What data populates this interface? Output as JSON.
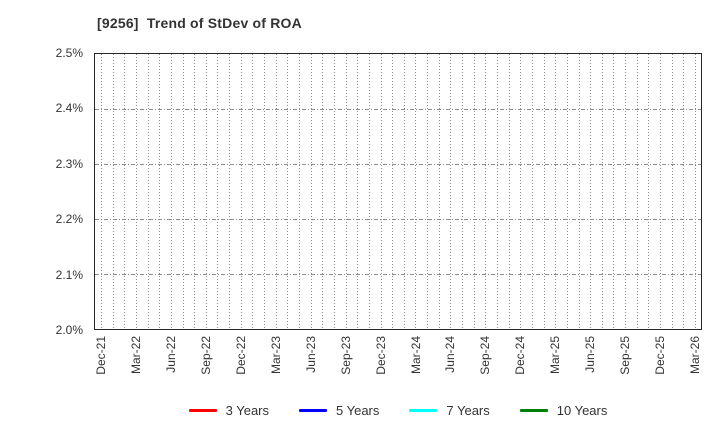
{
  "title": "[9256]  Trend of StDev of ROA",
  "chart_data": {
    "type": "line",
    "title": "[9256]  Trend of StDev of ROA",
    "x_tick_labels": [
      "Dec-21",
      "Mar-22",
      "Jun-22",
      "Sep-22",
      "Dec-22",
      "Mar-23",
      "Jun-23",
      "Sep-23",
      "Dec-23",
      "Mar-24",
      "Jun-24",
      "Sep-24",
      "Dec-24",
      "Mar-25",
      "Jun-25",
      "Sep-25",
      "Dec-25",
      "Mar-26"
    ],
    "x_gridline_interval": "monthly",
    "y_tick_labels": [
      "2.5%",
      "2.4%",
      "2.3%",
      "2.2%",
      "2.1%",
      "2.0%"
    ],
    "ylim": [
      2.0,
      2.5
    ],
    "y_tick_step": 0.1,
    "y_unit": "%",
    "grid": true,
    "legend_position": "bottom-center",
    "series": [
      {
        "name": "3 Years",
        "color": "#fe0000",
        "values": []
      },
      {
        "name": "5 Years",
        "color": "#0000fe",
        "values": []
      },
      {
        "name": "7 Years",
        "color": "#00ffff",
        "values": []
      },
      {
        "name": "10 Years",
        "color": "#008000",
        "values": []
      }
    ],
    "plot_note": "no series data visible within plotted range"
  },
  "colors": {
    "grid": "#8c8c8c",
    "plot_border": "#262626",
    "text": "#333333",
    "background": "#ffffff"
  }
}
